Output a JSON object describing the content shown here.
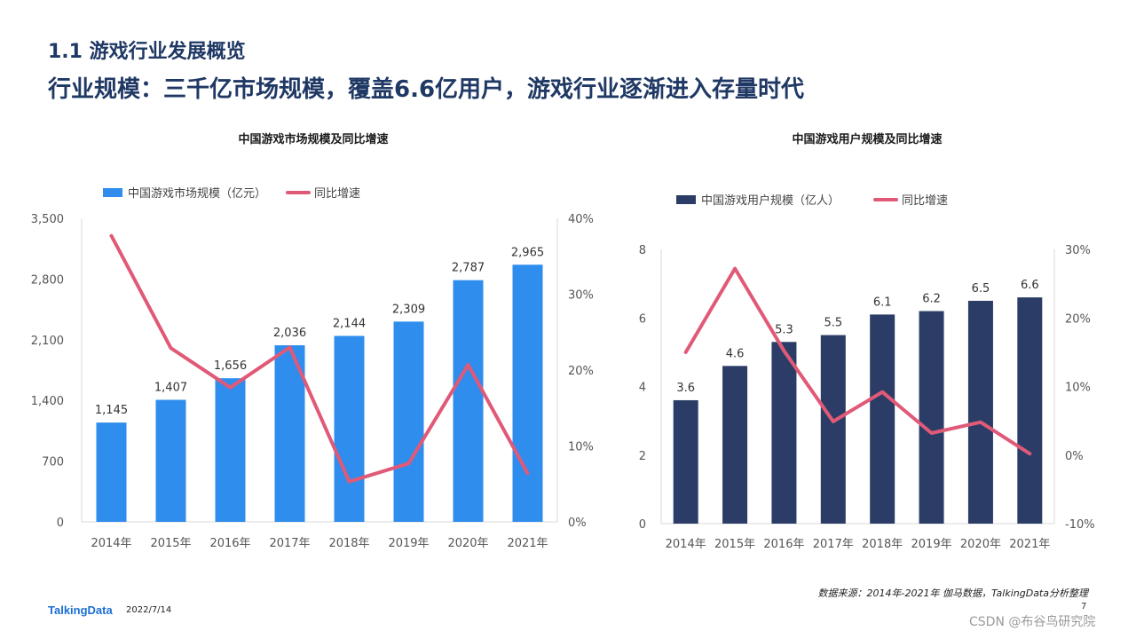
{
  "header": {
    "section_title": "1.1 游戏行业发展概览",
    "main_title": "行业规模：三千亿市场规模，覆盖6.6亿用户，游戏行业逐渐进入存量时代"
  },
  "chart_data": [
    {
      "type": "bar",
      "title": "中国游戏市场规模及同比增速",
      "categories": [
        "2014年",
        "2015年",
        "2016年",
        "2017年",
        "2018年",
        "2019年",
        "2020年",
        "2021年"
      ],
      "series": [
        {
          "name": "中国游戏市场规模（亿元）",
          "type": "bar",
          "axis": "left",
          "color": "#2e8ded",
          "values": [
            1145,
            1407,
            1656,
            2036,
            2144,
            2309,
            2787,
            2965
          ],
          "labels": [
            "1,145",
            "1,407",
            "1,656",
            "2,036",
            "2,144",
            "2,309",
            "2,787",
            "2,965"
          ]
        },
        {
          "name": "同比增速",
          "type": "line",
          "axis": "right",
          "color": "#e05a78",
          "values": [
            37.7,
            22.9,
            17.7,
            23.0,
            5.3,
            7.7,
            20.7,
            6.4
          ]
        }
      ],
      "y_left": {
        "min": 0,
        "max": 3500,
        "ticks": [
          "0",
          "700",
          "1,400",
          "2,100",
          "2,800",
          "3,500"
        ]
      },
      "y_right": {
        "min": 0,
        "max": 40,
        "ticks": [
          "0%",
          "10%",
          "20%",
          "30%",
          "40%"
        ]
      },
      "legend_position": "top-left",
      "grid": false
    },
    {
      "type": "bar",
      "title": "中国游戏用户规模及同比增速",
      "categories": [
        "2014年",
        "2015年",
        "2016年",
        "2017年",
        "2018年",
        "2019年",
        "2020年",
        "2021年"
      ],
      "series": [
        {
          "name": "中国游戏用户规模（亿人）",
          "type": "bar",
          "axis": "left",
          "color": "#2b3d66",
          "values": [
            3.6,
            4.6,
            5.3,
            5.5,
            6.1,
            6.2,
            6.5,
            6.6
          ],
          "labels": [
            "3.6",
            "4.6",
            "5.3",
            "5.5",
            "6.1",
            "6.2",
            "6.5",
            "6.6"
          ]
        },
        {
          "name": "同比增速",
          "type": "line",
          "axis": "right",
          "color": "#e05a78",
          "values": [
            15.0,
            27.2,
            15.2,
            4.9,
            9.2,
            3.2,
            4.8,
            0.2
          ]
        }
      ],
      "y_left": {
        "min": 0,
        "max": 8,
        "ticks": [
          "0",
          "2",
          "4",
          "6",
          "8"
        ]
      },
      "y_right": {
        "min": -10,
        "max": 30,
        "ticks": [
          "-10%",
          "0%",
          "10%",
          "20%",
          "30%"
        ]
      },
      "legend_position": "top-left",
      "grid": false
    }
  ],
  "footer": {
    "brand": "TalkingData",
    "date": "2022/7/14",
    "source": "数据来源：2014年-2021年 伽马数据，TalkingData分析整理",
    "page_number": "7",
    "watermark": "CSDN @布谷鸟研究院"
  }
}
